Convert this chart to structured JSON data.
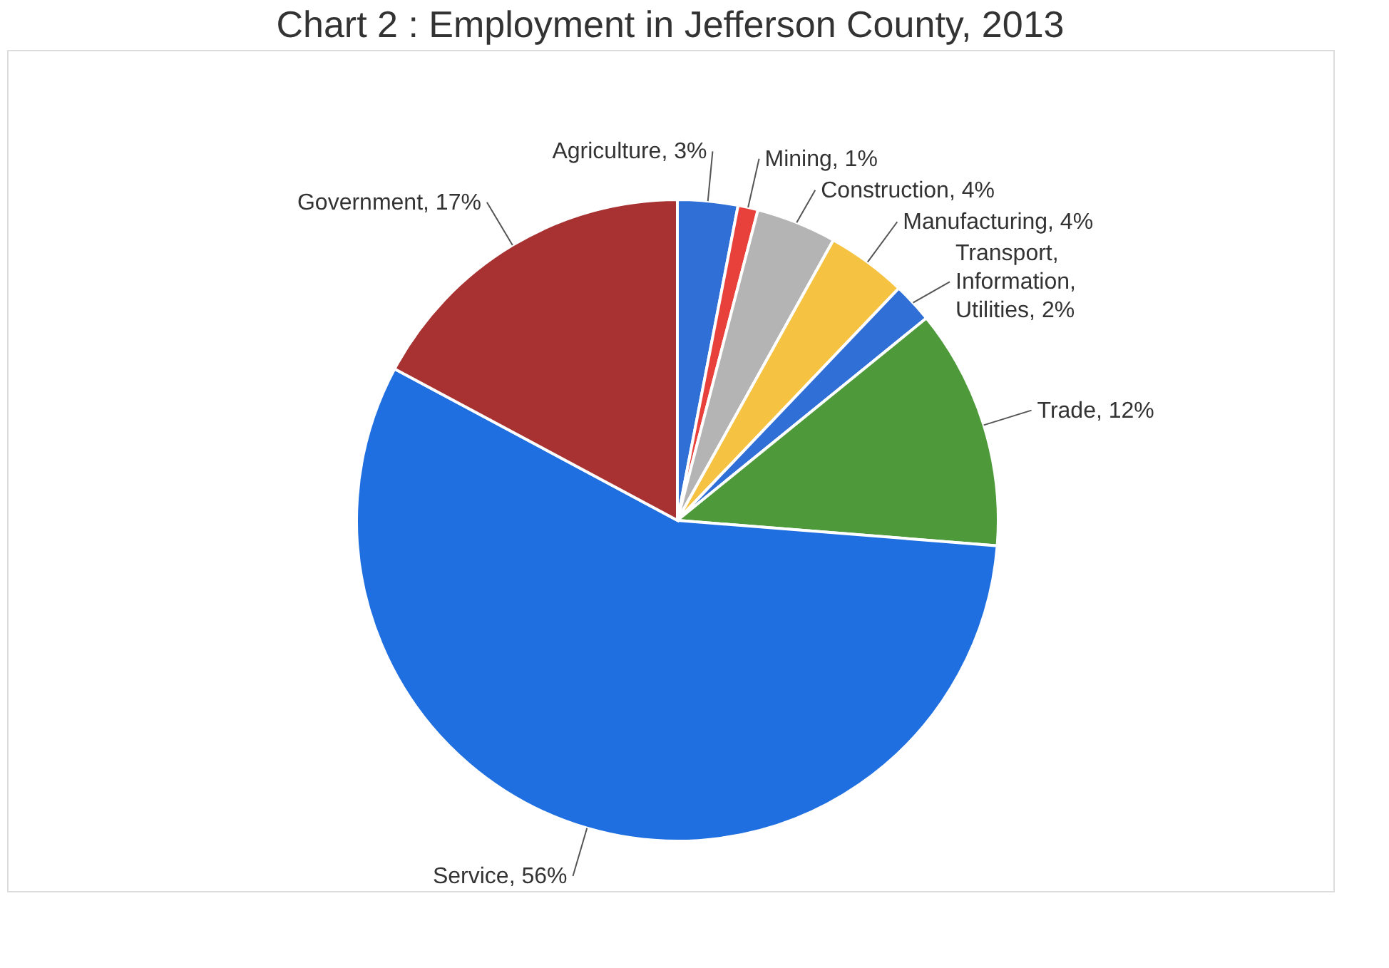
{
  "chart_data": {
    "type": "pie",
    "title": "Chart 2 : Employment in Jefferson County, 2013",
    "categories": [
      "Agriculture",
      "Mining",
      "Construction",
      "Manufacturing",
      "Transport, Information, Utilities",
      "Trade",
      "Service",
      "Government"
    ],
    "values": [
      3,
      1,
      4,
      4,
      2,
      12,
      56,
      17
    ],
    "value_labels": [
      "3%",
      "1%",
      "4%",
      "4%",
      "2%",
      "12%",
      "56%",
      "17%"
    ],
    "colors": [
      "#2f6fd6",
      "#e8403a",
      "#b4b4b4",
      "#f5c242",
      "#2f6fd6",
      "#4e9a3a",
      "#1f6fe0",
      "#a83232"
    ]
  }
}
